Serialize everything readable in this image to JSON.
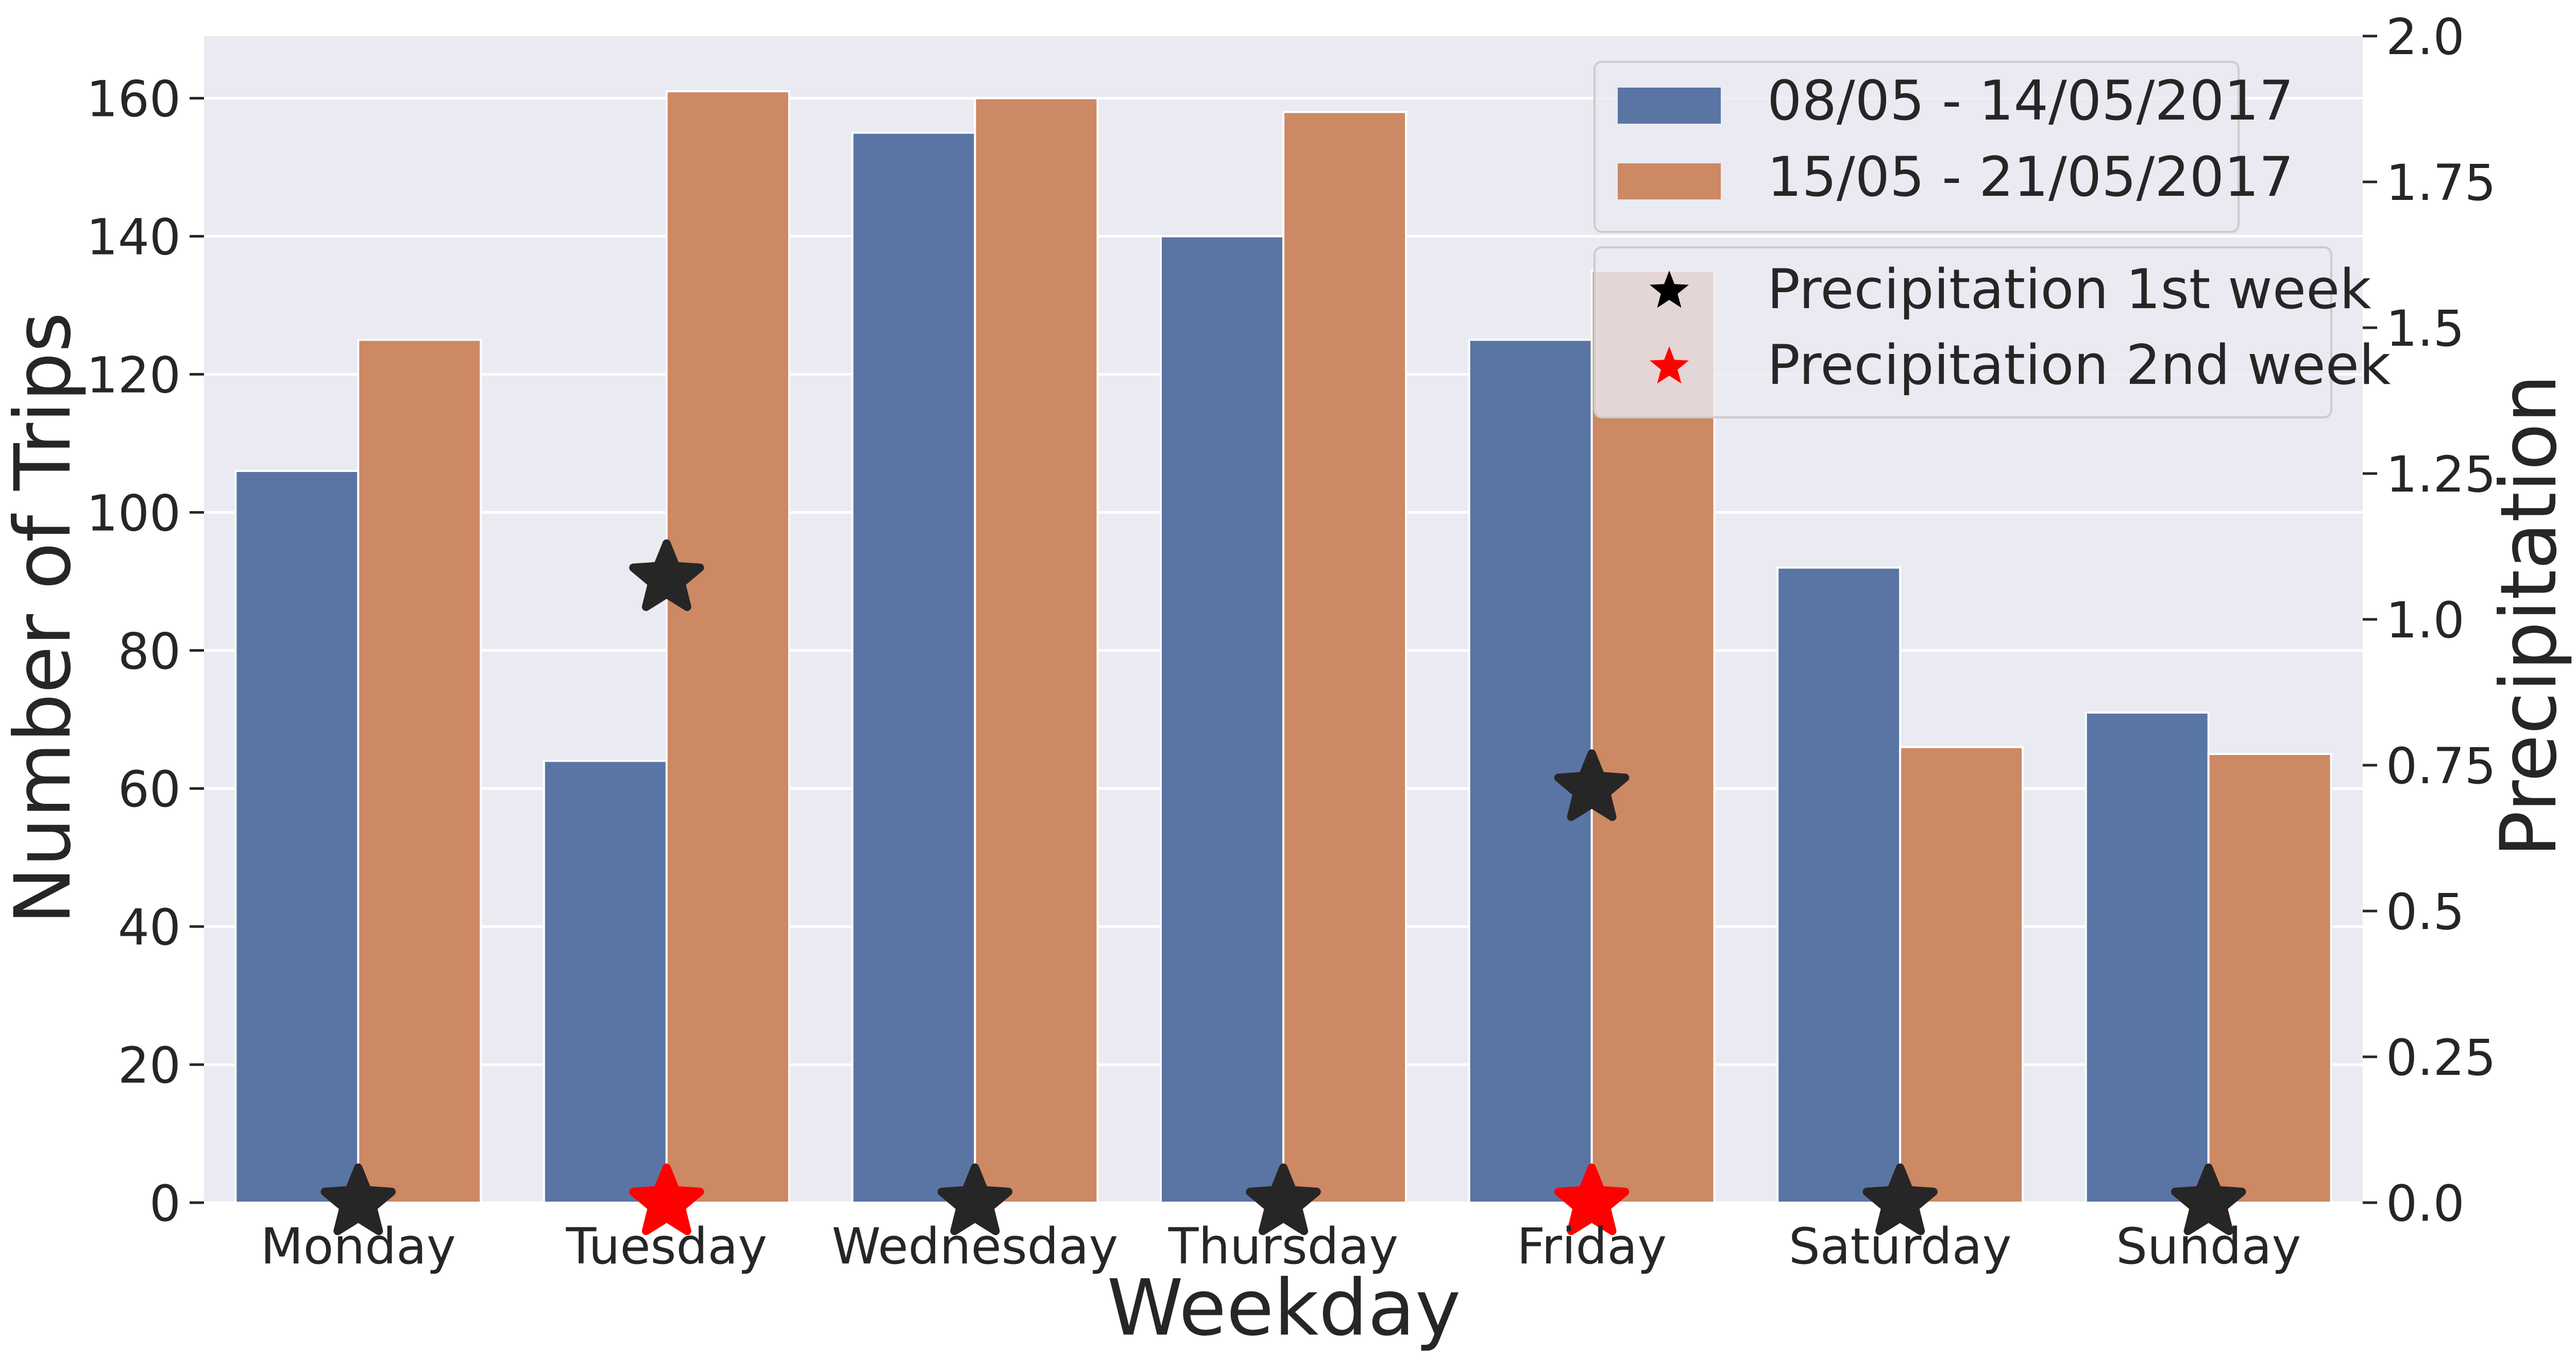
{
  "chart_data": {
    "type": "bar",
    "categories": [
      "Monday",
      "Tuesday",
      "Wednesday",
      "Thursday",
      "Friday",
      "Saturday",
      "Sunday"
    ],
    "xlabel": "Weekday",
    "ylabel": "Number of Trips",
    "y2label": "Precipitation",
    "ylim": [
      0,
      169
    ],
    "y2lim": [
      0,
      2.0
    ],
    "yticks": [
      "0",
      "20",
      "40",
      "60",
      "80",
      "100",
      "120",
      "140",
      "160"
    ],
    "y2ticks": [
      "0.0",
      "0.25",
      "0.5",
      "0.75",
      "1.0",
      "1.25",
      "1.5",
      "1.75",
      "2.0"
    ],
    "grid": true,
    "legend_placement": "top-right",
    "series": [
      {
        "name": "08/05 - 14/05/2017",
        "color": "#5975a4",
        "values": [
          106,
          64,
          155,
          140,
          125,
          92,
          71
        ]
      },
      {
        "name": "15/05 - 21/05/2017",
        "color": "#cc8963",
        "values": [
          125,
          161,
          160,
          158,
          135,
          66,
          65
        ]
      }
    ],
    "precipitation_series": [
      {
        "name": "Precipitation 1st week",
        "color": "#262626",
        "marker": "star",
        "values": [
          0,
          1.07,
          0,
          0,
          0.71,
          0,
          0
        ]
      },
      {
        "name": "Precipitation 2nd week",
        "color": "#ff0000",
        "marker": "star",
        "values": [
          0,
          0,
          0,
          0,
          0,
          0,
          0
        ]
      }
    ],
    "plot_background": "#eaeaf2"
  }
}
